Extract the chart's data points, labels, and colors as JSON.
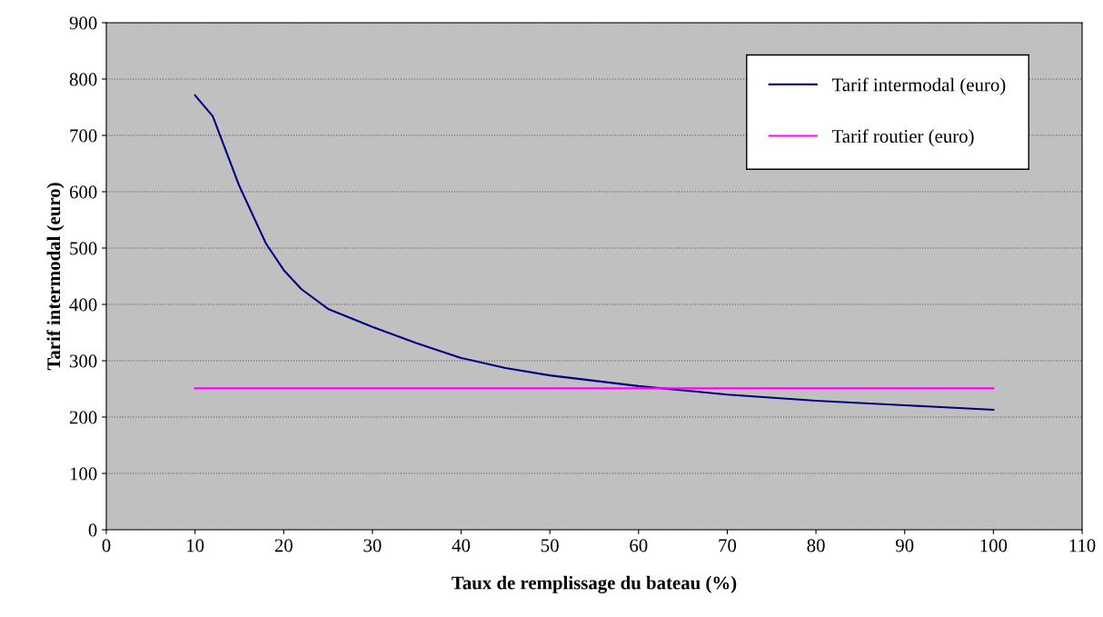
{
  "chart_data": {
    "type": "line",
    "xlabel": "Taux de remplissage du bateau (%)",
    "ylabel": "Tarif intermodal (euro)",
    "xlim": [
      0,
      110
    ],
    "xticks": [
      0,
      10,
      20,
      30,
      40,
      50,
      60,
      70,
      80,
      90,
      100,
      110
    ],
    "ylim": [
      0,
      900
    ],
    "yticks": [
      0,
      100,
      200,
      300,
      400,
      500,
      600,
      700,
      800,
      900
    ],
    "grid": "y",
    "legend": "top right",
    "marker": "none",
    "line_style": "solid",
    "series": [
      {
        "name": "Tarif intermodal (euro)",
        "color": "#000080",
        "x": [
          10,
          12,
          15,
          18,
          20,
          22,
          25,
          30,
          35,
          40,
          45,
          50,
          60,
          70,
          80,
          90,
          100
        ],
        "values": [
          771,
          734,
          610,
          508,
          461,
          427,
          392,
          360,
          331,
          305,
          287,
          274,
          255,
          240,
          229,
          221,
          213
        ]
      },
      {
        "name": "Tarif routier (euro)",
        "color": "#ff00ff",
        "x": [
          10,
          100
        ],
        "values": [
          251,
          251
        ]
      }
    ]
  }
}
